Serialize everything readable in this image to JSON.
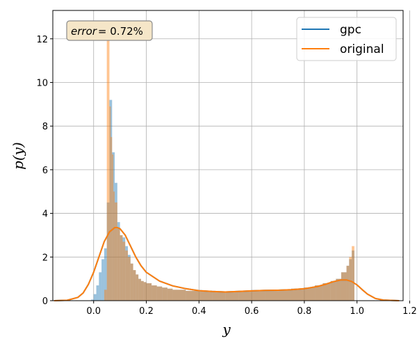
{
  "chart_data": {
    "type": "histogram_with_density",
    "xlabel": "y",
    "ylabel": "p(y)",
    "xlim": [
      -0.155,
      1.175
    ],
    "ylim": [
      0,
      13.3
    ],
    "xticks": [
      0.0,
      0.2,
      0.4,
      0.6,
      0.8,
      1.0,
      1.2
    ],
    "xtick_labels": [
      "0.0",
      "0.2",
      "0.4",
      "0.6",
      "0.8",
      "1.0",
      "1.2"
    ],
    "yticks": [
      0,
      2,
      4,
      6,
      8,
      10,
      12
    ],
    "ytick_labels": [
      "0",
      "2",
      "4",
      "6",
      "8",
      "10",
      "12"
    ],
    "grid": true,
    "legend_position": "top-right",
    "annotation": {
      "prefix": "error",
      "value": "= 0.72%",
      "position": "top-left"
    },
    "series": [
      {
        "name": "gpc",
        "color": "#1f77b4",
        "density_x": [
          -0.15,
          -0.1,
          -0.06,
          -0.04,
          -0.02,
          0.0,
          0.02,
          0.04,
          0.06,
          0.08,
          0.09,
          0.1,
          0.12,
          0.14,
          0.16,
          0.18,
          0.2,
          0.25,
          0.3,
          0.35,
          0.4,
          0.45,
          0.5,
          0.55,
          0.6,
          0.65,
          0.7,
          0.75,
          0.8,
          0.85,
          0.88,
          0.91,
          0.94,
          0.96,
          0.98,
          1.0,
          1.02,
          1.04,
          1.07,
          1.1,
          1.16
        ],
        "density_y": [
          0.0,
          0.02,
          0.15,
          0.35,
          0.75,
          1.3,
          2.0,
          2.7,
          3.15,
          3.35,
          3.35,
          3.3,
          3.0,
          2.5,
          2.0,
          1.6,
          1.3,
          0.9,
          0.68,
          0.55,
          0.46,
          0.42,
          0.4,
          0.42,
          0.45,
          0.47,
          0.48,
          0.5,
          0.55,
          0.65,
          0.75,
          0.87,
          0.95,
          0.95,
          0.88,
          0.72,
          0.5,
          0.3,
          0.1,
          0.03,
          0.0
        ],
        "hist_edges": [
          -0.02,
          -0.01,
          0.0,
          0.01,
          0.02,
          0.03,
          0.04,
          0.05,
          0.06,
          0.07,
          0.08,
          0.09,
          0.1,
          0.11,
          0.12,
          0.13,
          0.14,
          0.15,
          0.16,
          0.17,
          0.18,
          0.19,
          0.2,
          0.22,
          0.24,
          0.26,
          0.28,
          0.3,
          0.35,
          0.4,
          0.45,
          0.5,
          0.55,
          0.6,
          0.65,
          0.7,
          0.75,
          0.8,
          0.84,
          0.87,
          0.9,
          0.92,
          0.94,
          0.96,
          0.97,
          0.98,
          0.99,
          1.0
        ],
        "hist_values": [
          0.0,
          0.05,
          0.3,
          0.7,
          1.3,
          1.9,
          2.4,
          4.5,
          9.2,
          6.8,
          5.4,
          3.6,
          3.0,
          2.9,
          2.5,
          2.1,
          1.7,
          1.4,
          1.2,
          1.0,
          0.9,
          0.85,
          0.8,
          0.7,
          0.65,
          0.6,
          0.55,
          0.5,
          0.45,
          0.42,
          0.4,
          0.43,
          0.45,
          0.47,
          0.48,
          0.5,
          0.55,
          0.6,
          0.7,
          0.8,
          0.9,
          1.0,
          1.3,
          1.6,
          1.9,
          2.3,
          0.0
        ]
      },
      {
        "name": "original",
        "color": "#ff7f0e",
        "density_x": [
          -0.15,
          -0.1,
          -0.06,
          -0.04,
          -0.02,
          0.0,
          0.02,
          0.04,
          0.06,
          0.08,
          0.09,
          0.1,
          0.12,
          0.14,
          0.16,
          0.18,
          0.2,
          0.25,
          0.3,
          0.35,
          0.4,
          0.45,
          0.5,
          0.55,
          0.6,
          0.65,
          0.7,
          0.75,
          0.8,
          0.85,
          0.88,
          0.91,
          0.94,
          0.96,
          0.98,
          1.0,
          1.02,
          1.04,
          1.07,
          1.1,
          1.16
        ],
        "density_y": [
          0.0,
          0.02,
          0.15,
          0.35,
          0.75,
          1.3,
          2.0,
          2.7,
          3.15,
          3.35,
          3.35,
          3.3,
          3.0,
          2.5,
          2.0,
          1.6,
          1.3,
          0.9,
          0.68,
          0.55,
          0.46,
          0.42,
          0.4,
          0.42,
          0.45,
          0.47,
          0.48,
          0.5,
          0.55,
          0.65,
          0.75,
          0.87,
          0.95,
          0.95,
          0.88,
          0.72,
          0.5,
          0.3,
          0.1,
          0.03,
          0.0
        ],
        "hist_edges": [
          0.04,
          0.05,
          0.06,
          0.065,
          0.07,
          0.075,
          0.08,
          0.09,
          0.1,
          0.11,
          0.12,
          0.13,
          0.14,
          0.15,
          0.16,
          0.17,
          0.18,
          0.19,
          0.2,
          0.22,
          0.24,
          0.26,
          0.28,
          0.3,
          0.35,
          0.4,
          0.45,
          0.5,
          0.55,
          0.6,
          0.65,
          0.7,
          0.75,
          0.8,
          0.84,
          0.87,
          0.9,
          0.92,
          0.94,
          0.96,
          0.97,
          0.98,
          0.99,
          1.0
        ],
        "hist_values": [
          0.5,
          12.6,
          8.9,
          7.5,
          6.7,
          5.0,
          4.5,
          3.3,
          3.0,
          2.7,
          2.3,
          2.0,
          1.7,
          1.4,
          1.2,
          1.0,
          0.9,
          0.85,
          0.8,
          0.7,
          0.65,
          0.6,
          0.55,
          0.5,
          0.45,
          0.42,
          0.4,
          0.43,
          0.45,
          0.47,
          0.48,
          0.5,
          0.55,
          0.6,
          0.7,
          0.8,
          0.9,
          1.0,
          1.3,
          1.6,
          2.0,
          2.5,
          0.0
        ]
      }
    ]
  }
}
